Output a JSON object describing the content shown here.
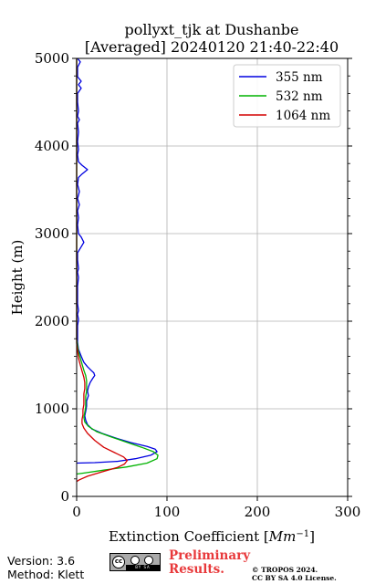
{
  "chart_data": {
    "type": "line",
    "title": "pollyxt_tjk at Dushanbe",
    "subtitle": "[Averaged] 20240120 21:40-22:40",
    "xlabel_text": "Extinction Coefficient [",
    "xlabel_unit_base": "Mm",
    "xlabel_unit_exp": "−1",
    "xlabel_close": "]",
    "ylabel": "Height (m)",
    "xlim": [
      0,
      300
    ],
    "ylim": [
      0,
      5000
    ],
    "xticks": [
      0,
      100,
      200,
      300
    ],
    "yticks": [
      0,
      1000,
      2000,
      3000,
      4000,
      5000
    ],
    "grid": true,
    "legend_position": "top-right",
    "series": [
      {
        "name": "355 nm",
        "color": "#0000e0",
        "points": [
          [
            0,
            380
          ],
          [
            20,
            385
          ],
          [
            45,
            400
          ],
          [
            65,
            430
          ],
          [
            82,
            470
          ],
          [
            89,
            510
          ],
          [
            87,
            540
          ],
          [
            78,
            570
          ],
          [
            60,
            615
          ],
          [
            45,
            660
          ],
          [
            28,
            720
          ],
          [
            17,
            770
          ],
          [
            12,
            820
          ],
          [
            10,
            870
          ],
          [
            9,
            920
          ],
          [
            10,
            970
          ],
          [
            11,
            1030
          ],
          [
            11,
            1090
          ],
          [
            13,
            1150
          ],
          [
            12,
            1200
          ],
          [
            13,
            1250
          ],
          [
            15,
            1300
          ],
          [
            18,
            1350
          ],
          [
            20,
            1380
          ],
          [
            19,
            1410
          ],
          [
            16,
            1440
          ],
          [
            12,
            1480
          ],
          [
            8,
            1530
          ],
          [
            5,
            1600
          ],
          [
            2,
            1680
          ],
          [
            1,
            1760
          ],
          [
            1,
            1850
          ],
          [
            1,
            1950
          ],
          [
            2,
            2020
          ],
          [
            1,
            2080
          ],
          [
            2,
            2120
          ],
          [
            1,
            2200
          ],
          [
            1,
            2300
          ],
          [
            1,
            2400
          ],
          [
            2,
            2500
          ],
          [
            1,
            2560
          ],
          [
            2,
            2600
          ],
          [
            1,
            2700
          ],
          [
            1,
            2780
          ],
          [
            5,
            2850
          ],
          [
            8,
            2900
          ],
          [
            5,
            2960
          ],
          [
            2,
            3000
          ],
          [
            1,
            3100
          ],
          [
            2,
            3180
          ],
          [
            1,
            3260
          ],
          [
            3,
            3330
          ],
          [
            1,
            3400
          ],
          [
            3,
            3480
          ],
          [
            1,
            3560
          ],
          [
            2,
            3640
          ],
          [
            6,
            3680
          ],
          [
            12,
            3730
          ],
          [
            6,
            3780
          ],
          [
            2,
            3820
          ],
          [
            1,
            3900
          ],
          [
            2,
            3960
          ],
          [
            1,
            4050
          ],
          [
            2,
            4160
          ],
          [
            1,
            4260
          ],
          [
            3,
            4300
          ],
          [
            1,
            4340
          ],
          [
            2,
            4400
          ],
          [
            1,
            4500
          ],
          [
            1,
            4600
          ],
          [
            5,
            4660
          ],
          [
            2,
            4700
          ],
          [
            5,
            4740
          ],
          [
            1,
            4790
          ],
          [
            1,
            4850
          ],
          [
            1,
            4900
          ],
          [
            4,
            4960
          ],
          [
            1,
            5000
          ]
        ]
      },
      {
        "name": "532 nm",
        "color": "#00b300",
        "points": [
          [
            0,
            255
          ],
          [
            10,
            270
          ],
          [
            30,
            300
          ],
          [
            55,
            335
          ],
          [
            78,
            380
          ],
          [
            89,
            430
          ],
          [
            90,
            470
          ],
          [
            85,
            510
          ],
          [
            72,
            560
          ],
          [
            55,
            620
          ],
          [
            38,
            680
          ],
          [
            22,
            740
          ],
          [
            13,
            800
          ],
          [
            9,
            850
          ],
          [
            8,
            900
          ],
          [
            9,
            960
          ],
          [
            10,
            1020
          ],
          [
            10,
            1080
          ],
          [
            10,
            1140
          ],
          [
            11,
            1200
          ],
          [
            11,
            1260
          ],
          [
            11,
            1320
          ],
          [
            10,
            1380
          ],
          [
            8,
            1440
          ],
          [
            6,
            1510
          ],
          [
            4,
            1580
          ],
          [
            2,
            1650
          ],
          [
            1,
            1720
          ],
          [
            0,
            1800
          ],
          [
            0,
            1900
          ],
          [
            0,
            2100
          ],
          [
            0,
            2500
          ],
          [
            0,
            3000
          ],
          [
            0,
            3500
          ],
          [
            0,
            4000
          ],
          [
            0,
            4500
          ],
          [
            0,
            5000
          ]
        ]
      },
      {
        "name": "1064 nm",
        "color": "#d40000",
        "points": [
          [
            0,
            170
          ],
          [
            3,
            190
          ],
          [
            12,
            230
          ],
          [
            28,
            280
          ],
          [
            45,
            330
          ],
          [
            53,
            370
          ],
          [
            56,
            410
          ],
          [
            52,
            450
          ],
          [
            42,
            500
          ],
          [
            30,
            560
          ],
          [
            20,
            640
          ],
          [
            12,
            720
          ],
          [
            8,
            780
          ],
          [
            6,
            830
          ],
          [
            6,
            880
          ],
          [
            7,
            930
          ],
          [
            7,
            990
          ],
          [
            8,
            1050
          ],
          [
            8,
            1110
          ],
          [
            8,
            1170
          ],
          [
            9,
            1230
          ],
          [
            9,
            1300
          ],
          [
            8,
            1360
          ],
          [
            6,
            1430
          ],
          [
            4,
            1500
          ],
          [
            2,
            1580
          ],
          [
            1,
            1660
          ],
          [
            0,
            1750
          ],
          [
            0,
            1900
          ],
          [
            0,
            2300
          ],
          [
            0,
            3000
          ],
          [
            0,
            3800
          ],
          [
            0,
            4500
          ],
          [
            0,
            5000
          ]
        ]
      }
    ]
  },
  "footer": {
    "version": "Version: 3.6",
    "method": "Method: Klett",
    "license_badge": {
      "circle": "cc",
      "strip": "BY SA"
    },
    "preliminary_line1": "Preliminary",
    "preliminary_line2": "Results.",
    "copyright_line1": "© TROPOS 2024.",
    "copyright_line2": "CC BY SA 4.0 License."
  }
}
